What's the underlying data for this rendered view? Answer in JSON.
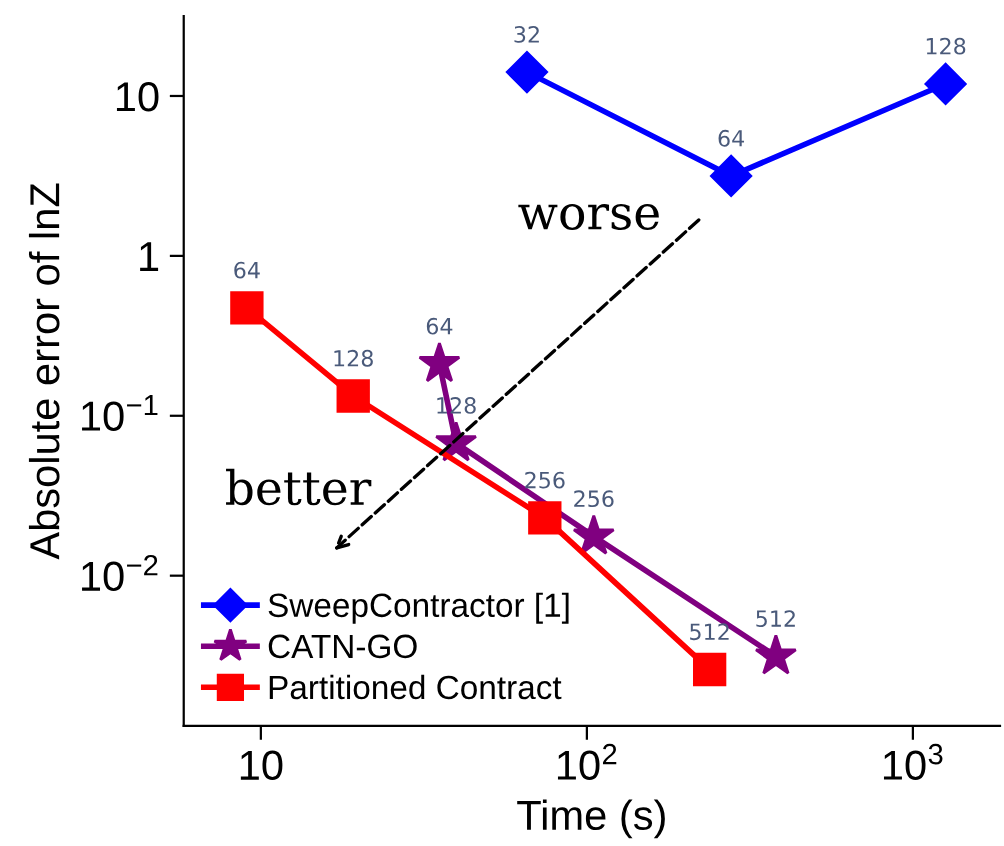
{
  "chart_data": {
    "type": "line",
    "xlabel": "Time (s)",
    "ylabel": "Absolute error of lnZ",
    "log": "xy",
    "grid": false,
    "legend": "bottom left",
    "xlim": [
      5.8,
      1850
    ],
    "ylim": [
      0.00115,
      31.6
    ],
    "xticks": [
      10,
      {
        "value": 100,
        "label": "10$^{2}$"
      },
      {
        "value": 1000,
        "label": "10$^{3}$"
      }
    ],
    "yticks": [
      {
        "value": 0.01,
        "label": "10$^{−2}$"
      },
      {
        "value": 0.1,
        "label": "10$^{−1}$"
      },
      1,
      10
    ],
    "series": [
      {
        "name": "SweepContractor [1]",
        "color": "#0000ff",
        "marker": "diamond",
        "x": [
          65.5,
          277,
          1260
        ],
        "values": [
          14.1,
          3.16,
          11.9
        ]
      },
      {
        "name": "CATN-GO",
        "color": "#800080",
        "marker": "star",
        "x": [
          35.3,
          39.7,
          105,
          380
        ],
        "values": [
          0.211,
          0.0674,
          0.0176,
          0.00313
        ]
      },
      {
        "name": "Partitioned Contract",
        "color": "#ff0000",
        "marker": "square",
        "x": [
          9.06,
          19.2,
          74.3,
          238
        ],
        "values": [
          0.473,
          0.133,
          0.023,
          0.00259
        ]
      }
    ],
    "annotations": [
      "worse",
      "better",
      {
        "text": "32",
        "x": 65.5,
        "y": 14.1
      },
      {
        "text": "64",
        "x": 277,
        "y": 3.16
      },
      {
        "text": "128",
        "x": 1260,
        "y": 11.9
      },
      {
        "text": "64",
        "x": 35.3,
        "y": 0.211
      },
      {
        "text": "128",
        "x": 39.7,
        "y": 0.0674
      },
      {
        "text": "256",
        "x": 105,
        "y": 0.0176
      },
      {
        "text": "512",
        "x": 380,
        "y": 0.00313
      },
      {
        "text": "64",
        "x": 9.06,
        "y": 0.473
      },
      {
        "text": "128",
        "x": 19.2,
        "y": 0.133
      },
      {
        "text": "256",
        "x": 74.3,
        "y": 0.023
      },
      {
        "text": "512",
        "x": 238,
        "y": 0.00259
      }
    ]
  }
}
